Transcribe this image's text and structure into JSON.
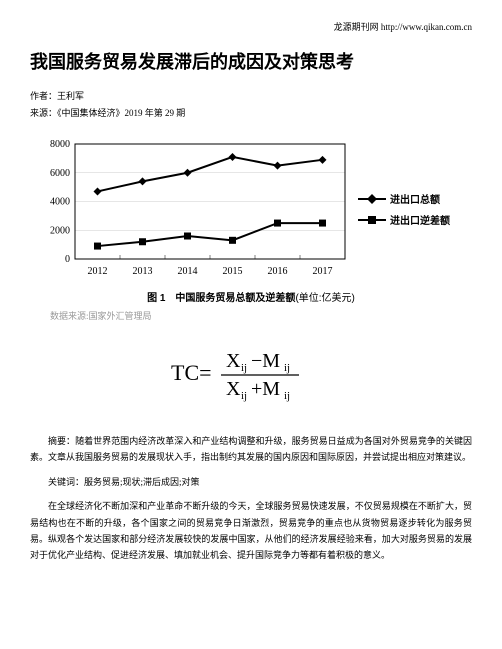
{
  "header_link": "龙源期刊网 http://www.qikan.com.cn",
  "title": "我国服务贸易发展滞后的成因及对策思考",
  "author_label": "作者：",
  "author_name": "王利军",
  "source_label": "来源：",
  "source_name": "《中国集体经济》2019 年第 29 期",
  "chart": {
    "type": "line",
    "categories": [
      "2012",
      "2013",
      "2014",
      "2015",
      "2016",
      "2017"
    ],
    "series1": {
      "label": "进出口总额",
      "values": [
        4700,
        5400,
        6000,
        7100,
        6500,
        6900
      ],
      "color": "#000000",
      "marker": "diamond"
    },
    "series2": {
      "label": "进出口逆差额",
      "values": [
        900,
        1200,
        1600,
        1300,
        2500,
        2500
      ],
      "color": "#000000",
      "marker": "square"
    },
    "ylim": [
      0,
      8000
    ],
    "ytick_step": 2000,
    "background_color": "#ffffff",
    "grid_color": "#cccccc",
    "axis_color": "#000000",
    "tick_fontsize": 10,
    "line_width": 2
  },
  "caption_prefix": "图 1　中国服务贸易总额及逆差额",
  "caption_unit": "(单位:亿美元)",
  "data_source": "数据来源:国家外汇管理局",
  "formula": "TC = (X_ij − M_ij) / (X_ij + M_ij)",
  "abstract": "摘要：随着世界范围内经济改革深入和产业结构调整和升级，服务贸易日益成为各国对外贸易竞争的关键因素。文章从我国服务贸易的发展现状入手，指出制约其发展的国内原因和国际原因，并尝试提出相应对策建议。",
  "keywords": "关键词：服务贸易;现状;滞后成因;对策",
  "body_p1": "在全球经济化不断加深和产业革命不断升级的今天，全球服务贸易快速发展，不仅贸易规模在不断扩大，贸易结构也在不断的升级，各个国家之间的贸易竞争日渐激烈，贸易竞争的重点也从货物贸易逐步转化为服务贸易。纵观各个发达国家和部分经济发展较快的发展中国家，从他们的经济发展经验来看，加大对服务贸易的发展对于优化产业结构、促进经济发展、填加就业机会、提升国际竞争力等都有着积极的意义。"
}
